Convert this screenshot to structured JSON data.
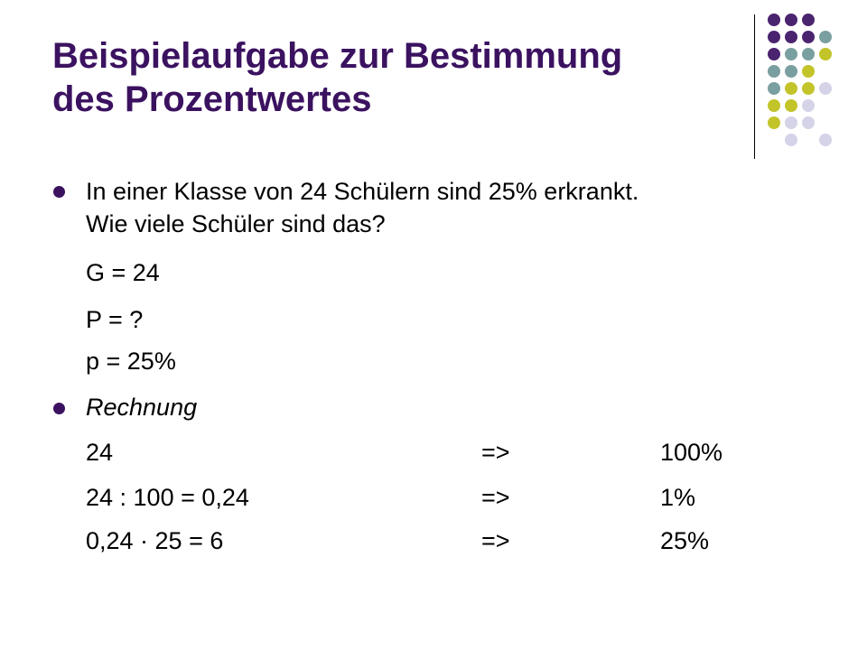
{
  "slide": {
    "title_line1": "Beispielaufgabe zur Bestimmung",
    "title_line2": "des Prozentwertes",
    "colors": {
      "title": "#3b1260",
      "purple": "#4b2470",
      "teal": "#7a9fa0",
      "olive": "#c3c42a",
      "lavender": "#d5d3e8"
    },
    "bullet1": {
      "line1": "In einer Klasse von 24 Schülern sind 25% erkrankt.",
      "line2": "Wie viele Schüler sind das?"
    },
    "given": {
      "g": "G = 24",
      "p_unknown": "P = ?",
      "p_percent": "p = 25%"
    },
    "bullet2": {
      "label": "Rechnung"
    },
    "calc_rows": [
      {
        "expr": "24",
        "arrow": "=>",
        "result": "100%"
      },
      {
        "expr": "24 : 100 = 0,24",
        "arrow": "=>",
        "result": "1%"
      },
      {
        "expr": "0,24 · 25 = 6",
        "arrow": "=>",
        "result": "25%"
      }
    ]
  }
}
